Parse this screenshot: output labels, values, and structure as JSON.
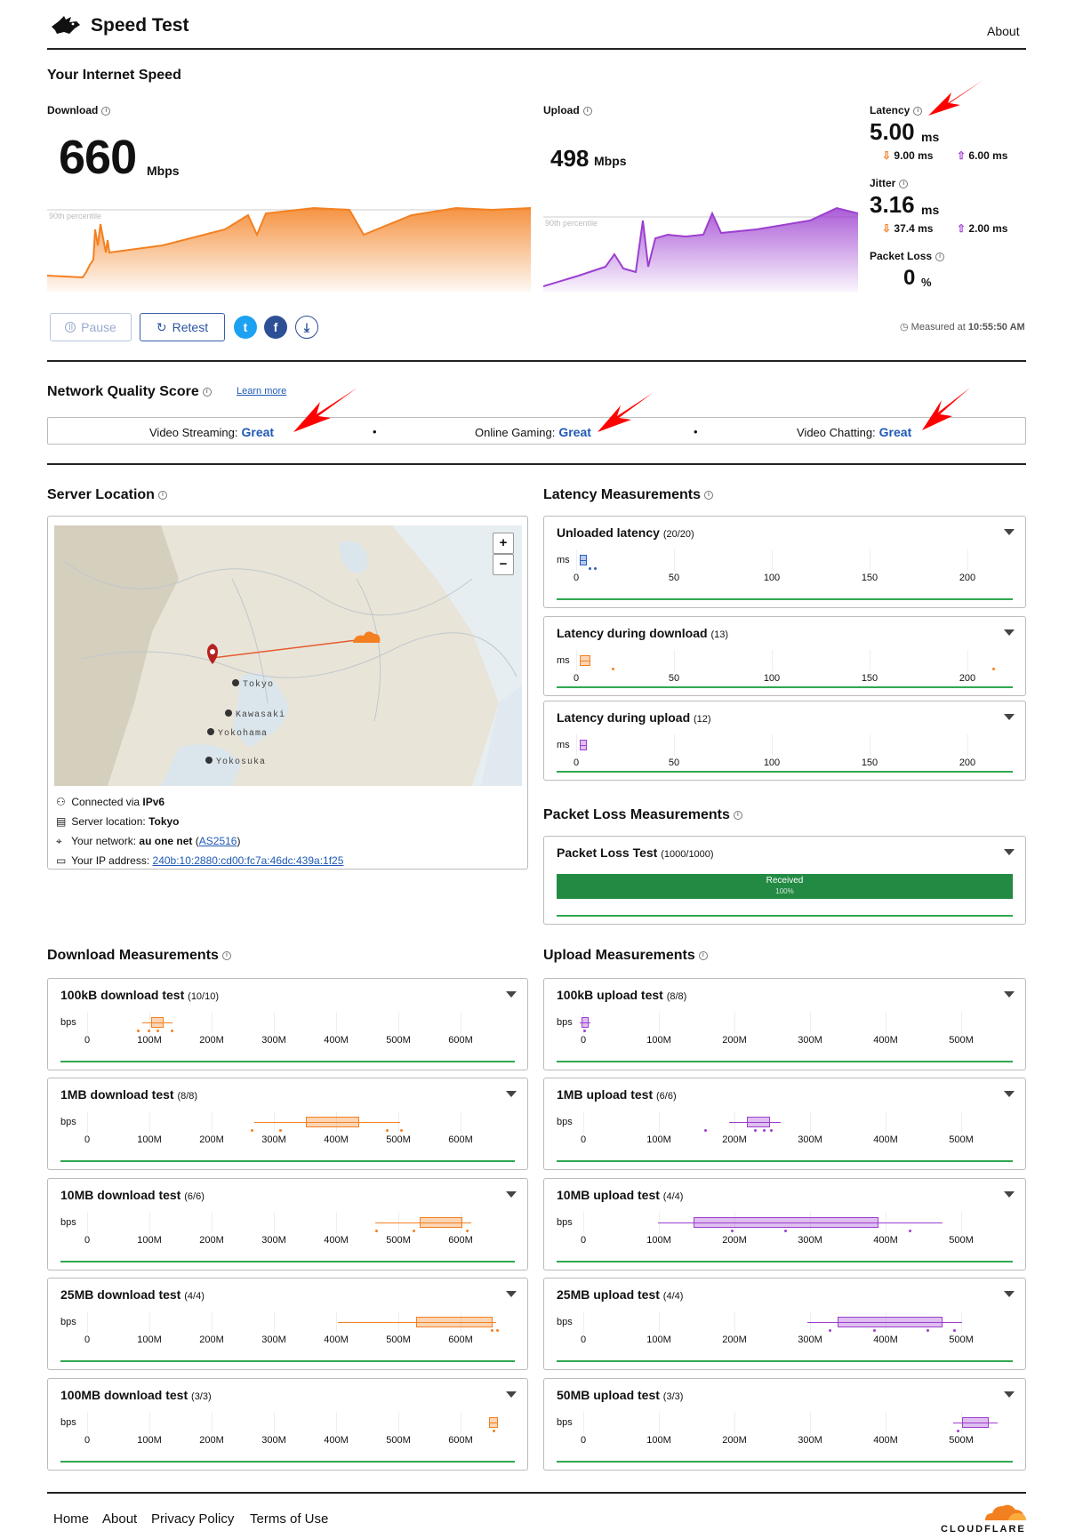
{
  "header": {
    "brand": "Speed Test",
    "about": "About"
  },
  "speed": {
    "section_title": "Your Internet Speed",
    "download_label": "Download",
    "download_value": "660",
    "download_unit": "Mbps",
    "upload_label": "Upload",
    "upload_value": "498",
    "upload_unit": "Mbps",
    "percentile_label": "90th percentile",
    "latency_label": "Latency",
    "latency_value": "5.00",
    "latency_unit": "ms",
    "latency_down": "9.00 ms",
    "latency_up": "6.00 ms",
    "jitter_label": "Jitter",
    "jitter_value": "3.16",
    "jitter_unit": "ms",
    "jitter_down": "37.4 ms",
    "jitter_up": "2.00 ms",
    "packet_loss_label": "Packet Loss",
    "packet_loss_value": "0",
    "packet_loss_unit": "%",
    "measured_at_prefix": "Measured at",
    "measured_at_time": "10:55:50 AM"
  },
  "controls": {
    "pause": "Pause",
    "retest": "Retest"
  },
  "nqs": {
    "title": "Network Quality Score",
    "learn_more": "Learn more",
    "items": [
      {
        "label": "Video Streaming:",
        "value": "Great"
      },
      {
        "label": "Online Gaming:",
        "value": "Great"
      },
      {
        "label": "Video Chatting:",
        "value": "Great"
      }
    ]
  },
  "server": {
    "title": "Server Location",
    "cities": [
      "Tokyo",
      "Kawasaki",
      "Yokohama",
      "Yokosuka"
    ],
    "connected_prefix": "Connected via",
    "connected_value": "IPv6",
    "server_location_prefix": "Server location:",
    "server_location_value": "Tokyo",
    "network_prefix": "Your network:",
    "network_value": "au one net",
    "network_as": "AS2516",
    "ip_prefix": "Your IP address:",
    "ip_value": "240b:10:2880:cd00:fc7a:46dc:439a:1f25"
  },
  "latency_measurements": {
    "title": "Latency Measurements",
    "unit": "ms",
    "ticks": [
      "0",
      "50",
      "100",
      "150",
      "200"
    ],
    "cards": [
      {
        "title": "Unloaded latency",
        "count": "(20/20)"
      },
      {
        "title": "Latency during download",
        "count": "(13)"
      },
      {
        "title": "Latency during upload",
        "count": "(12)"
      }
    ]
  },
  "packet_loss": {
    "title": "Packet Loss Measurements",
    "card_title": "Packet Loss Test",
    "card_count": "(1000/1000)",
    "bar_label": "Received",
    "bar_pct": "100%",
    "received_fraction": 1.0
  },
  "download_measurements": {
    "title": "Download Measurements",
    "unit": "bps",
    "ticks": [
      "0",
      "100M",
      "200M",
      "300M",
      "400M",
      "500M",
      "600M"
    ],
    "cards": [
      {
        "title": "100kB download test",
        "count": "(10/10)"
      },
      {
        "title": "1MB download test",
        "count": "(8/8)"
      },
      {
        "title": "10MB download test",
        "count": "(6/6)"
      },
      {
        "title": "25MB download test",
        "count": "(4/4)"
      },
      {
        "title": "100MB download test",
        "count": "(3/3)"
      }
    ]
  },
  "upload_measurements": {
    "title": "Upload Measurements",
    "unit": "bps",
    "ticks": [
      "0",
      "100M",
      "200M",
      "300M",
      "400M",
      "500M"
    ],
    "cards": [
      {
        "title": "100kB upload test",
        "count": "(8/8)"
      },
      {
        "title": "1MB upload test",
        "count": "(6/6)"
      },
      {
        "title": "10MB upload test",
        "count": "(4/4)"
      },
      {
        "title": "25MB upload test",
        "count": "(4/4)"
      },
      {
        "title": "50MB upload test",
        "count": "(3/3)"
      }
    ]
  },
  "footer": {
    "links": [
      "Home",
      "About",
      "Privacy Policy",
      "Terms of Use"
    ],
    "logo_text": "CLOUDFLARE"
  },
  "colors": {
    "download": "#f38020",
    "upload": "#9c3fd0",
    "link": "#1f59b7",
    "green": "#2fa84f",
    "annotation": "#ff0000"
  }
}
